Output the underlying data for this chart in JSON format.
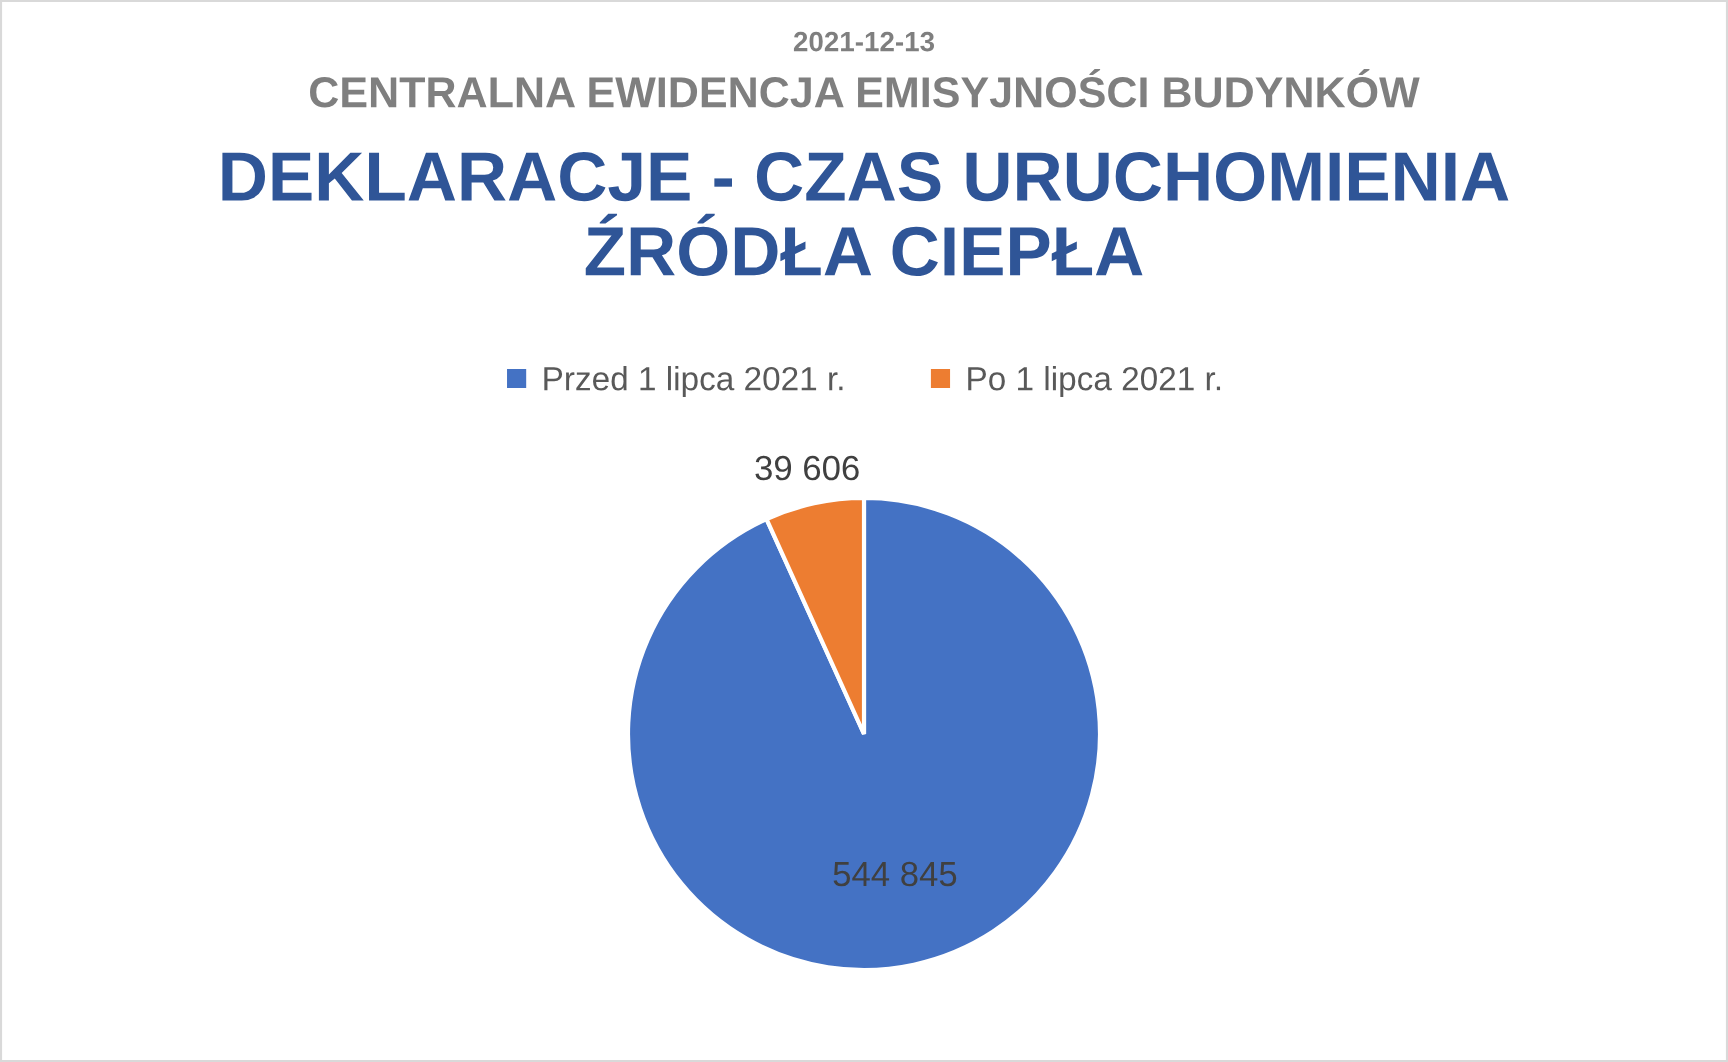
{
  "chart_data": {
    "type": "pie",
    "title": "DEKLARACJE - CZAS URUCHOMIENIA ŹRÓDŁA CIEPŁA",
    "subtitle": "CENTRALNA EWIDENCJA EMISYJNOŚCI BUDYNKÓW",
    "annotations": [
      "2021-12-13"
    ],
    "categories": [
      "Przed 1 lipca 2021 r.",
      "Po 1 lipca 2021 r."
    ],
    "values": [
      544845,
      39606
    ],
    "value_labels": [
      "544 845",
      "39 606"
    ],
    "colors": [
      "#4472c4",
      "#ed7d31"
    ],
    "legend": "top"
  }
}
